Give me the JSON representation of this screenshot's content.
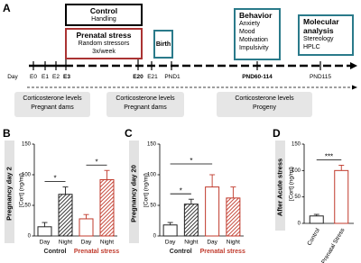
{
  "panel_a": {
    "label": "A",
    "control_box": {
      "title": "Control",
      "text": "Handling"
    },
    "stress_box": {
      "title": "Prenatal stress",
      "lines": [
        "Random stressors",
        "3x/week"
      ]
    },
    "birth_box": "Birth",
    "behavior_box": {
      "title": "Behavior",
      "items": [
        "Anxiety",
        "Mood",
        "Motivation",
        "Impulsivity"
      ]
    },
    "molecular_box": {
      "title": "Molecular analysis",
      "items": [
        "Stereology",
        "HPLC"
      ]
    },
    "timeline": {
      "day": "Day",
      "E0": "E0",
      "E1": "E1",
      "E2": "E2",
      "E3": "E3",
      "E20": "E20",
      "E21": "E21",
      "PND1": "PND1",
      "PND60": "PND60-114",
      "PND115": "PND115"
    },
    "sampling": [
      {
        "title": "Corticosterone levels",
        "subject": "Pregnant dams"
      },
      {
        "title": "Corticosterone levels",
        "subject": "Pregnant dams"
      },
      {
        "title": "Corticosterone levels",
        "subject": "Progeny"
      }
    ]
  },
  "chart_data": [
    {
      "type": "bar",
      "panel": "B",
      "side_label": "Pregnancy day 2",
      "y_label": "[Cort] (ng/ml)",
      "ylim": [
        0,
        150
      ],
      "yticks": [
        0,
        50,
        100,
        150
      ],
      "categories": [
        "Day",
        "Night",
        "Day",
        "Night"
      ],
      "values": [
        15,
        68,
        28,
        92
      ],
      "errors": [
        7,
        12,
        7,
        15
      ],
      "colors": [
        "#222222",
        "#222222",
        "#c0392b",
        "#c0392b"
      ],
      "fills": [
        "open",
        "hatched",
        "open",
        "hatched"
      ],
      "groups": [
        {
          "name": "Control",
          "color": "#222222",
          "bars": [
            0,
            1
          ]
        },
        {
          "name": "Prenatal stress",
          "color": "#c0392b",
          "bars": [
            2,
            3
          ]
        }
      ],
      "significance": [
        {
          "label": "*",
          "bars": [
            0,
            1
          ]
        },
        {
          "label": "*",
          "bars": [
            2,
            3
          ]
        }
      ]
    },
    {
      "type": "bar",
      "panel": "C",
      "side_label": "Pregnancy day 20",
      "y_label": "[Cort] (ng/ml)",
      "ylim": [
        0,
        150
      ],
      "yticks": [
        0,
        50,
        100,
        150
      ],
      "categories": [
        "Day",
        "Night",
        "Day",
        "Night"
      ],
      "values": [
        18,
        52,
        80,
        62
      ],
      "errors": [
        4,
        8,
        20,
        18
      ],
      "colors": [
        "#222222",
        "#222222",
        "#c0392b",
        "#c0392b"
      ],
      "fills": [
        "open",
        "hatched",
        "open",
        "hatched"
      ],
      "groups": [
        {
          "name": "Control",
          "color": "#222222",
          "bars": [
            0,
            1
          ]
        },
        {
          "name": "Prenatal stress",
          "color": "#c0392b",
          "bars": [
            2,
            3
          ]
        }
      ],
      "significance": [
        {
          "label": "*",
          "bars": [
            0,
            1
          ]
        },
        {
          "label": "*",
          "bars": [
            0,
            2
          ]
        }
      ]
    },
    {
      "type": "bar",
      "panel": "D",
      "side_label": "After Acute stress",
      "y_label": "[Cort] (ng/ml)",
      "ylim": [
        0,
        150
      ],
      "yticks": [
        0,
        50,
        100,
        150
      ],
      "categories": [
        "Control",
        "Prenatal Stress"
      ],
      "values": [
        14,
        100
      ],
      "errors": [
        3,
        10
      ],
      "colors": [
        "#222222",
        "#c0392b"
      ],
      "fills": [
        "open",
        "open"
      ],
      "significance": [
        {
          "label": "***",
          "bars": [
            0,
            1
          ]
        }
      ]
    }
  ]
}
